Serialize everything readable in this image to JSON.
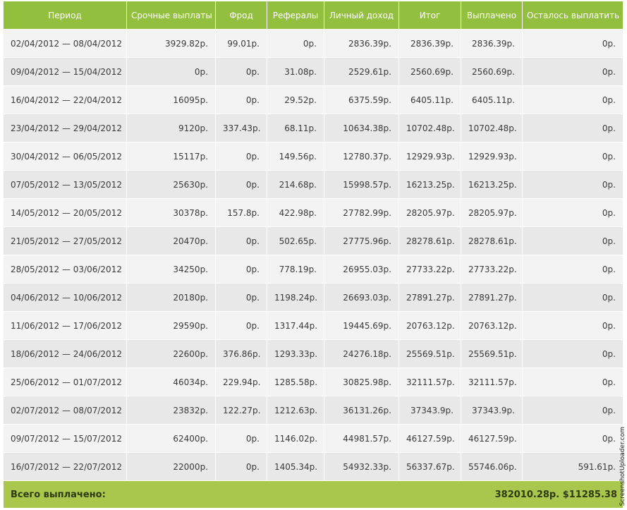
{
  "columns": [
    "Период",
    "Срочные выплаты",
    "Фрод",
    "Рефералы",
    "Личный доход",
    "Итог",
    "Выплачено",
    "Осталось выплатить"
  ],
  "rows": [
    [
      "02/04/2012 — 08/04/2012",
      "3929.82р.",
      "99.01р.",
      "0р.",
      "2836.39р.",
      "2836.39р.",
      "2836.39р.",
      "0р."
    ],
    [
      "09/04/2012 — 15/04/2012",
      "0р.",
      "0р.",
      "31.08р.",
      "2529.61р.",
      "2560.69р.",
      "2560.69р.",
      "0р."
    ],
    [
      "16/04/2012 — 22/04/2012",
      "16095р.",
      "0р.",
      "29.52р.",
      "6375.59р.",
      "6405.11р.",
      "6405.11р.",
      "0р."
    ],
    [
      "23/04/2012 — 29/04/2012",
      "9120р.",
      "337.43р.",
      "68.11р.",
      "10634.38р.",
      "10702.48р.",
      "10702.48р.",
      "0р."
    ],
    [
      "30/04/2012 — 06/05/2012",
      "15117р.",
      "0р.",
      "149.56р.",
      "12780.37р.",
      "12929.93р.",
      "12929.93р.",
      "0р."
    ],
    [
      "07/05/2012 — 13/05/2012",
      "25630р.",
      "0р.",
      "214.68р.",
      "15998.57р.",
      "16213.25р.",
      "16213.25р.",
      "0р."
    ],
    [
      "14/05/2012 — 20/05/2012",
      "30378р.",
      "157.8р.",
      "422.98р.",
      "27782.99р.",
      "28205.97р.",
      "28205.97р.",
      "0р."
    ],
    [
      "21/05/2012 — 27/05/2012",
      "20470р.",
      "0р.",
      "502.65р.",
      "27775.96р.",
      "28278.61р.",
      "28278.61р.",
      "0р."
    ],
    [
      "28/05/2012 — 03/06/2012",
      "34250р.",
      "0р.",
      "778.19р.",
      "26955.03р.",
      "27733.22р.",
      "27733.22р.",
      "0р."
    ],
    [
      "04/06/2012 — 10/06/2012",
      "20180р.",
      "0р.",
      "1198.24р.",
      "26693.03р.",
      "27891.27р.",
      "27891.27р.",
      "0р."
    ],
    [
      "11/06/2012 — 17/06/2012",
      "29590р.",
      "0р.",
      "1317.44р.",
      "19445.69р.",
      "20763.12р.",
      "20763.12р.",
      "0р."
    ],
    [
      "18/06/2012 — 24/06/2012",
      "22600р.",
      "376.86р.",
      "1293.33р.",
      "24276.18р.",
      "25569.51р.",
      "25569.51р.",
      "0р."
    ],
    [
      "25/06/2012 — 01/07/2012",
      "46034р.",
      "229.94р.",
      "1285.58р.",
      "30825.98р.",
      "32111.57р.",
      "32111.57р.",
      "0р."
    ],
    [
      "02/07/2012 — 08/07/2012",
      "23832р.",
      "122.27р.",
      "1212.63р.",
      "36131.26р.",
      "37343.9р.",
      "37343.9р.",
      "0р."
    ],
    [
      "09/07/2012 — 15/07/2012",
      "62400р.",
      "0р.",
      "1146.02р.",
      "44981.57р.",
      "46127.59р.",
      "46127.59р.",
      "0р."
    ],
    [
      "16/07/2012 — 22/07/2012",
      "22000р.",
      "0р.",
      "1405.34р.",
      "54932.33р.",
      "56337.67р.",
      "55746.06р.",
      "591.61р."
    ]
  ],
  "footer": {
    "label": "Всего выплачено:",
    "total": "382010.28р. $11285.38"
  },
  "watermark": "ScreenshotUploader.com",
  "colors": {
    "header_bg": "#92c03e",
    "footer_bg": "#a8c74c",
    "row_odd": "#f3f3f3",
    "row_even": "#e8e8e8"
  }
}
